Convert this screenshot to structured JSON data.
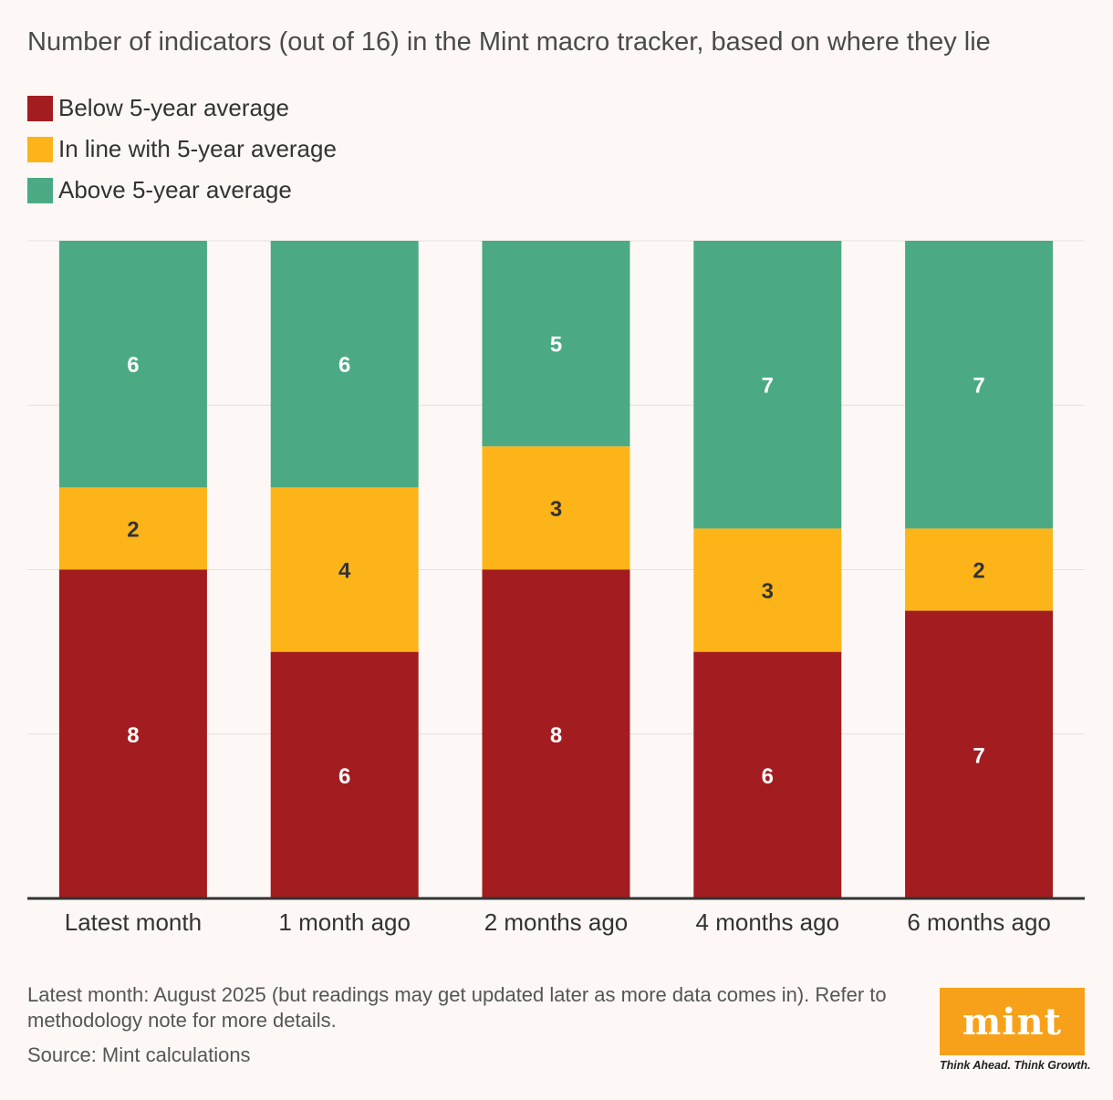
{
  "title": "Number of indicators (out of 16) in the Mint macro tracker, based on where they lie",
  "legend": [
    {
      "label": "Below 5-year average",
      "color": "#a31c20"
    },
    {
      "label": "In line with 5-year average",
      "color": "#fcb418"
    },
    {
      "label": "Above 5-year average",
      "color": "#4baa83"
    }
  ],
  "chart_data": {
    "type": "bar",
    "stacked": true,
    "categories": [
      "Latest month",
      "1 month ago",
      "2 months ago",
      "4 months ago",
      "6 months ago"
    ],
    "series": [
      {
        "name": "Below 5-year average",
        "values": [
          8,
          6,
          8,
          6,
          7
        ],
        "color": "#a31c20"
      },
      {
        "name": "In line with 5-year average",
        "values": [
          2,
          4,
          3,
          3,
          2
        ],
        "color": "#fcb418"
      },
      {
        "name": "Above 5-year average",
        "values": [
          6,
          6,
          5,
          7,
          7
        ],
        "color": "#4baa83"
      }
    ],
    "ylim": [
      0,
      16
    ],
    "grid": true,
    "legend_position": "top-left",
    "data_labels": true
  },
  "footnote": "Latest month: August 2025 (but readings may get updated later as more data comes in). Refer to methodology note for more details.",
  "source": "Source: Mint calculations",
  "logo": {
    "text": "mint",
    "tagline": "Think Ahead. Think Growth.",
    "color": "#f7a11a"
  }
}
